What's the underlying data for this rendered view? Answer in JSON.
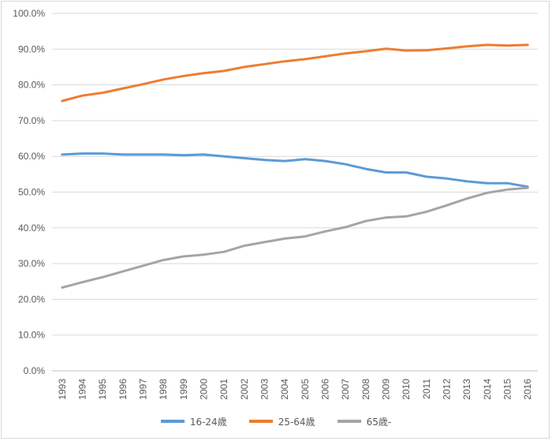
{
  "chart_data": {
    "type": "line",
    "title": "",
    "xlabel": "",
    "ylabel": "",
    "x": [
      "1993",
      "1994",
      "1995",
      "1996",
      "1997",
      "1998",
      "1999",
      "2000",
      "2001",
      "2002",
      "2003",
      "2004",
      "2005",
      "2006",
      "2007",
      "2008",
      "2009",
      "2010",
      "2011",
      "2012",
      "2013",
      "2014",
      "2015",
      "2016"
    ],
    "ylim": [
      0,
      100
    ],
    "yticks": [
      "0.0%",
      "10.0%",
      "20.0%",
      "30.0%",
      "40.0%",
      "50.0%",
      "60.0%",
      "70.0%",
      "80.0%",
      "90.0%",
      "100.0%"
    ],
    "grid": true,
    "legend_position": "bottom",
    "series": [
      {
        "name": "16-24歳",
        "color": "#5b9bd5",
        "values": [
          60.5,
          60.8,
          60.8,
          60.5,
          60.5,
          60.5,
          60.3,
          60.5,
          60.0,
          59.5,
          59.0,
          58.7,
          59.2,
          58.7,
          57.8,
          56.5,
          55.5,
          55.5,
          54.3,
          53.8,
          53.0,
          52.5,
          52.5,
          51.5
        ]
      },
      {
        "name": "25-64歳",
        "color": "#ed7d31",
        "values": [
          75.5,
          77.0,
          77.8,
          79.0,
          80.2,
          81.5,
          82.5,
          83.3,
          83.9,
          85.0,
          85.8,
          86.6,
          87.2,
          88.0,
          88.8,
          89.4,
          90.1,
          89.6,
          89.7,
          90.2,
          90.8,
          91.2,
          91.0,
          91.2
        ]
      },
      {
        "name": "65歳-",
        "color": "#a5a5a5",
        "values": [
          23.3,
          24.8,
          26.2,
          27.8,
          29.4,
          31.0,
          32.0,
          32.5,
          33.3,
          35.0,
          36.0,
          37.0,
          37.6,
          39.0,
          40.2,
          41.9,
          42.9,
          43.2,
          44.5,
          46.3,
          48.2,
          49.8,
          50.7,
          51.2
        ]
      }
    ]
  }
}
